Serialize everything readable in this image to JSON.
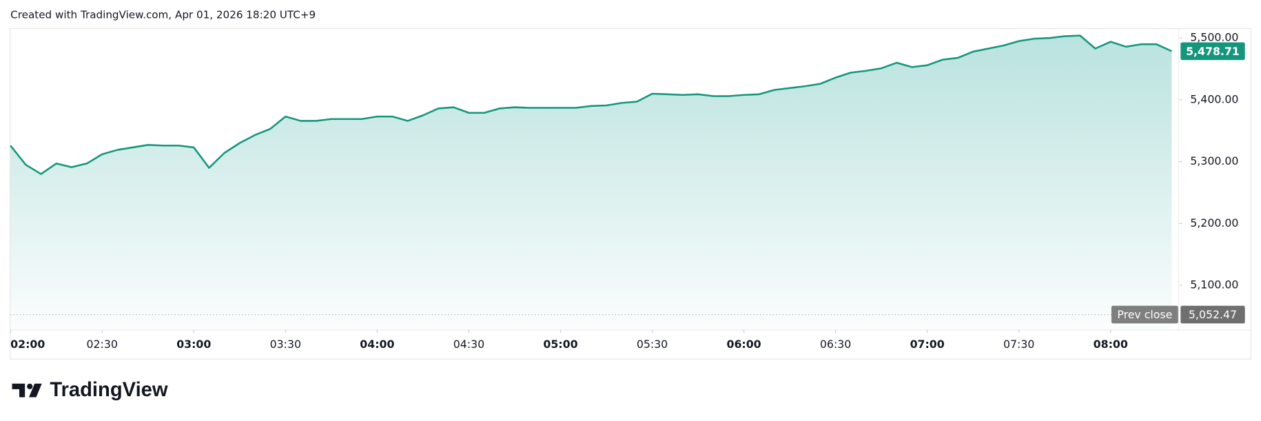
{
  "header": "Created with TradingView.com, Apr 01, 2026 18:20 UTC+9",
  "footer": {
    "brand": "TradingView"
  },
  "chart_data": {
    "type": "area",
    "x": [
      "02:00",
      "02:05",
      "02:10",
      "02:15",
      "02:20",
      "02:25",
      "02:30",
      "02:35",
      "02:40",
      "02:45",
      "02:50",
      "02:55",
      "03:00",
      "03:05",
      "03:10",
      "03:15",
      "03:20",
      "03:25",
      "03:30",
      "03:35",
      "03:40",
      "03:45",
      "03:50",
      "03:55",
      "04:00",
      "04:05",
      "04:10",
      "04:15",
      "04:20",
      "04:25",
      "04:30",
      "04:35",
      "04:40",
      "04:45",
      "04:50",
      "04:55",
      "05:00",
      "05:05",
      "05:10",
      "05:15",
      "05:20",
      "05:25",
      "05:30",
      "05:35",
      "05:40",
      "05:45",
      "05:50",
      "05:55",
      "06:00",
      "06:05",
      "06:10",
      "06:15",
      "06:20",
      "06:25",
      "06:30",
      "06:35",
      "06:40",
      "06:45",
      "06:50",
      "06:55",
      "07:00",
      "07:05",
      "07:10",
      "07:15",
      "07:20",
      "07:25",
      "07:30",
      "07:35",
      "07:40",
      "07:45",
      "07:50",
      "07:55",
      "08:00",
      "08:05",
      "08:10",
      "08:15",
      "08:20"
    ],
    "series": [
      {
        "color": "#14967c",
        "values": [
          5326,
          5295,
          5280,
          5297,
          5291,
          5297,
          5312,
          5319,
          5323,
          5327,
          5326,
          5326,
          5323,
          5290,
          5314,
          5330,
          5343,
          5353,
          5373,
          5366,
          5366,
          5369,
          5369,
          5369,
          5373,
          5373,
          5366,
          5375,
          5386,
          5388,
          5379,
          5379,
          5386,
          5388,
          5387,
          5387,
          5387,
          5387,
          5390,
          5391,
          5395,
          5397,
          5410,
          5409,
          5408,
          5409,
          5406,
          5406,
          5408,
          5409,
          5416,
          5419,
          5422,
          5426,
          5436,
          5444,
          5447,
          5451,
          5460,
          5453,
          5456,
          5465,
          5468,
          5478,
          5483,
          5488,
          5495,
          5499,
          5500,
          5503,
          5504,
          5483,
          5494,
          5486,
          5490,
          5490,
          5478.71
        ],
        "value_labels": [
          null,
          null,
          null,
          null,
          null,
          null,
          null,
          null,
          null,
          null,
          null,
          null,
          null,
          null,
          null,
          null,
          null,
          null,
          null,
          null,
          null,
          null,
          null,
          null,
          null,
          null,
          null,
          null,
          null,
          null,
          null,
          null,
          null,
          null,
          null,
          null,
          null,
          null,
          null,
          null,
          null,
          null,
          null,
          null,
          null,
          null,
          null,
          null,
          null,
          null,
          null,
          null,
          null,
          null,
          null,
          null,
          null,
          null,
          null,
          null,
          null,
          null,
          null,
          null,
          null,
          null,
          null,
          null,
          null,
          null,
          null,
          null,
          null,
          null,
          null,
          null,
          "5,478.71"
        ]
      }
    ],
    "prev_close": {
      "label": "Prev close",
      "value": 5052.47,
      "value_label": "5,052.47"
    },
    "ylim": [
      5028,
      5516
    ],
    "yticks": [
      {
        "value": 5100,
        "label": "5,100.00"
      },
      {
        "value": 5200,
        "label": "5,200.00"
      },
      {
        "value": 5300,
        "label": "5,300.00"
      },
      {
        "value": 5400,
        "label": "5,400.00"
      },
      {
        "value": 5500,
        "label": "5,500.00"
      }
    ],
    "xticks": [
      "02:00",
      "02:30",
      "03:00",
      "03:30",
      "04:00",
      "04:30",
      "05:00",
      "05:30",
      "06:00",
      "06:30",
      "07:00",
      "07:30",
      "08:00"
    ]
  }
}
